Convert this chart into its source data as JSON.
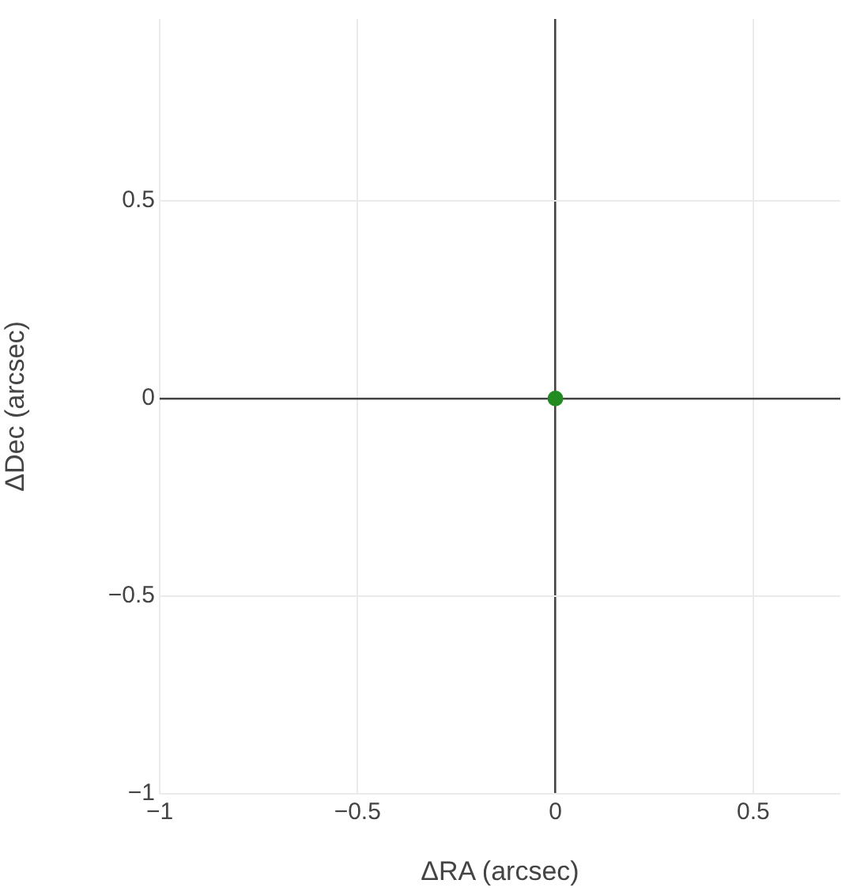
{
  "chart_data": {
    "type": "scatter",
    "xlabel": "ΔRA (arcsec)",
    "ylabel": "ΔDec (arcsec)",
    "x": [
      0
    ],
    "series": [
      {
        "color": "#228b22",
        "values": [
          0
        ]
      }
    ],
    "xlim": [
      -1,
      0.72
    ],
    "ylim": [
      -1,
      0.96
    ],
    "xticks": [
      {
        "value": -1,
        "label": "−1"
      },
      {
        "value": -0.5,
        "label": "−0.5"
      },
      0,
      0.5
    ],
    "yticks": [
      {
        "value": -1,
        "label": "−1"
      },
      {
        "value": -0.5,
        "label": "−0.5"
      },
      0,
      0.5
    ],
    "grid": true,
    "legend": false,
    "marker": "circle"
  }
}
